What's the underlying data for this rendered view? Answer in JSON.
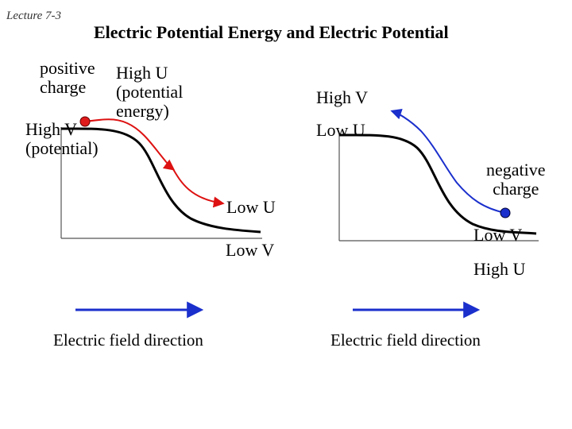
{
  "header": {
    "lecture": "Lecture 7-3",
    "title": "Electric Potential Energy and Electric Potential"
  },
  "left_panel": {
    "positive_charge_label": [
      "positive",
      "charge"
    ],
    "high_u_label": [
      "High U",
      "(potential",
      "energy)"
    ],
    "high_v_label": [
      "High V",
      "(potential)"
    ],
    "low_u_label": "Low U",
    "low_v_label": "Low V",
    "field_label": "Electric field direction"
  },
  "right_panel": {
    "high_v_label": "High V",
    "low_u_label": "Low U",
    "negative_charge_label": [
      "negative",
      "charge"
    ],
    "low_v_label": "Low V",
    "high_u_label": "High U",
    "field_label": "Electric field direction"
  },
  "colors": {
    "positive_charge": "#e01b1b",
    "negative_charge": "#1a2fcc",
    "red_path": "#dd1111",
    "blue_path": "#1a2fcc",
    "arrows": "#1a2fcc"
  }
}
